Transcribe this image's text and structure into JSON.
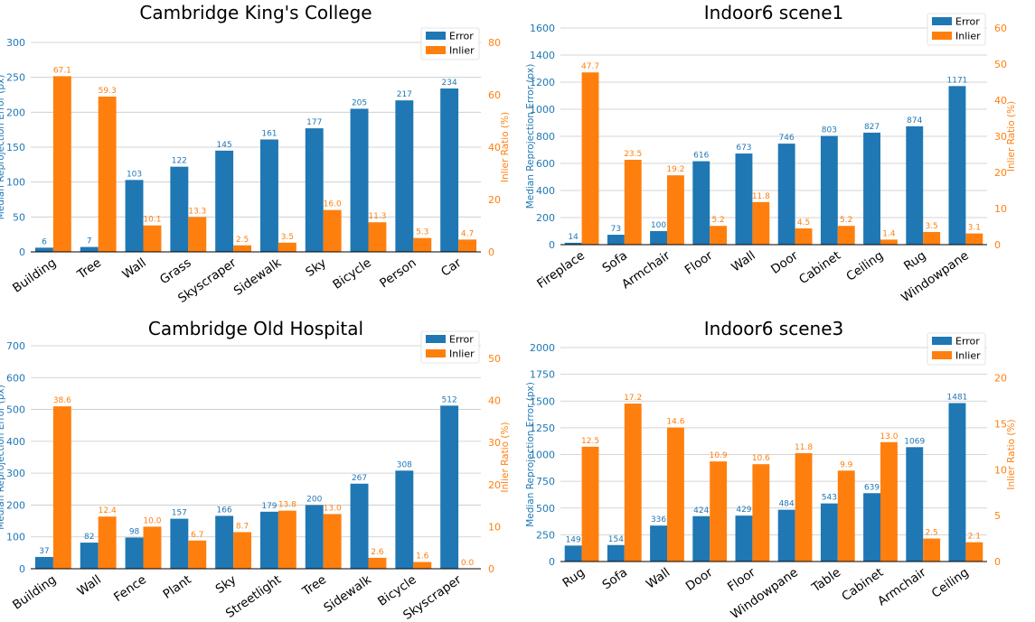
{
  "colors": {
    "error": "#1f77b4",
    "inlier": "#ff7f0e",
    "grid": "#c8c8c8",
    "axis": "#000000"
  },
  "chart_data": [
    {
      "type": "bar",
      "title": "Cambridge King's College",
      "categories": [
        "Building",
        "Tree",
        "Wall",
        "Grass",
        "Skyscraper",
        "Sidewalk",
        "Sky",
        "Bicycle",
        "Person",
        "Car"
      ],
      "series": [
        {
          "name": "Error",
          "axis": "left",
          "values": [
            6,
            7,
            103,
            122,
            145,
            161,
            177,
            205,
            217,
            234
          ],
          "labels": [
            "6",
            "7",
            "103",
            "122",
            "145",
            "161",
            "177",
            "205",
            "217",
            "234"
          ]
        },
        {
          "name": "Inlier",
          "axis": "right",
          "values": [
            67.1,
            59.3,
            10.1,
            13.3,
            2.5,
            3.5,
            16.0,
            11.3,
            5.3,
            4.7
          ],
          "labels": [
            "67.1",
            "59.3",
            "10.1",
            "13.3",
            "2.5",
            "3.5",
            "16.0",
            "11.3",
            "5.3",
            "4.7"
          ]
        }
      ],
      "ylabel": "Median Reprojection Error (px)",
      "y2label": "Inlier Ratio (%)",
      "ylim": [
        0,
        300
      ],
      "yticks": [
        0,
        50,
        100,
        150,
        200,
        250,
        300
      ],
      "y2lim": [
        0,
        80
      ],
      "y2ticks": [
        0,
        20,
        40,
        60,
        80
      ],
      "grid": true,
      "legend": "top-right"
    },
    {
      "type": "bar",
      "title": "Indoor6 scene1",
      "categories": [
        "Fireplace",
        "Sofa",
        "Armchair",
        "Floor",
        "Wall",
        "Door",
        "Cabinet",
        "Ceiling",
        "Rug",
        "Windowpane"
      ],
      "series": [
        {
          "name": "Error",
          "axis": "left",
          "values": [
            14,
            73,
            100,
            616,
            673,
            746,
            803,
            827,
            874,
            1171
          ],
          "labels": [
            "14",
            "73",
            "100",
            "616",
            "673",
            "746",
            "803",
            "827",
            "874",
            "1171"
          ]
        },
        {
          "name": "Inlier",
          "axis": "right",
          "values": [
            47.7,
            23.5,
            19.2,
            5.2,
            11.8,
            4.5,
            5.2,
            1.4,
            3.5,
            3.1
          ],
          "labels": [
            "47.7",
            "23.5",
            "19.2",
            "5.2",
            "11.8",
            "4.5",
            "5.2",
            "1.4",
            "3.5",
            "3.1"
          ]
        }
      ],
      "ylabel": "Median Reprojection Error (px)",
      "y2label": "Inlier Ratio (%)",
      "ylim": [
        0,
        1600
      ],
      "yticks": [
        0,
        200,
        400,
        600,
        800,
        1000,
        1200,
        1400,
        1600
      ],
      "y2lim": [
        0,
        60
      ],
      "y2ticks": [
        0,
        10,
        20,
        30,
        40,
        50,
        60
      ],
      "grid": true,
      "legend": "top-right"
    },
    {
      "type": "bar",
      "title": "Cambridge Old Hospital",
      "categories": [
        "Building",
        "Wall",
        "Fence",
        "Plant",
        "Sky",
        "Streetlight",
        "Tree",
        "Sidewalk",
        "Bicycle",
        "Skyscraper"
      ],
      "series": [
        {
          "name": "Error",
          "axis": "left",
          "values": [
            37,
            82,
            98,
            157,
            166,
            179,
            200,
            267,
            308,
            512
          ],
          "labels": [
            "37",
            "82",
            "98",
            "157",
            "166",
            "179",
            "200",
            "267",
            "308",
            "512"
          ]
        },
        {
          "name": "Inlier",
          "axis": "right",
          "values": [
            38.6,
            12.4,
            10.0,
            6.7,
            8.7,
            13.8,
            13.0,
            2.6,
            1.6,
            0.0
          ],
          "labels": [
            "38.6",
            "12.4",
            "10.0",
            "6.7",
            "8.7",
            "13.8",
            "13.0",
            "2.6",
            "1.6",
            "0.0"
          ]
        }
      ],
      "ylabel": "Median Reprojection Error (px)",
      "y2label": "Inlier Ratio (%)",
      "ylim": [
        0,
        700
      ],
      "yticks": [
        0,
        100,
        200,
        300,
        400,
        500,
        600,
        700
      ],
      "y2lim": [
        0,
        53
      ],
      "y2ticks": [
        0,
        10,
        20,
        30,
        40,
        50
      ],
      "grid": true,
      "legend": "top-right"
    },
    {
      "type": "bar",
      "title": "Indoor6 scene3",
      "categories": [
        "Rug",
        "Sofa",
        "Wall",
        "Door",
        "Floor",
        "Windowpane",
        "Table",
        "Cabinet",
        "Armchair",
        "Ceiling"
      ],
      "series": [
        {
          "name": "Error",
          "axis": "left",
          "values": [
            149,
            154,
            336,
            424,
            429,
            484,
            543,
            639,
            1069,
            1481
          ],
          "labels": [
            "149",
            "154",
            "336",
            "424",
            "429",
            "484",
            "543",
            "639",
            "1069",
            "1481"
          ]
        },
        {
          "name": "Inlier",
          "axis": "right",
          "values": [
            12.5,
            17.2,
            14.6,
            10.9,
            10.6,
            11.8,
            9.9,
            13.0,
            2.5,
            2.1
          ],
          "labels": [
            "12.5",
            "17.2",
            "14.6",
            "10.9",
            "10.6",
            "11.8",
            "9.9",
            "13.0",
            "2.5",
            "2.1"
          ]
        }
      ],
      "ylabel": "Median Reprojection Error (px)",
      "y2label": "Inlier Ratio (%)",
      "ylim": [
        0,
        2000
      ],
      "yticks": [
        0,
        250,
        500,
        750,
        1000,
        1250,
        1500,
        1750,
        2000
      ],
      "y2lim": [
        0,
        23.3
      ],
      "y2ticks": [
        0,
        5,
        10,
        15,
        20
      ],
      "grid": true,
      "legend": "top-right"
    }
  ]
}
